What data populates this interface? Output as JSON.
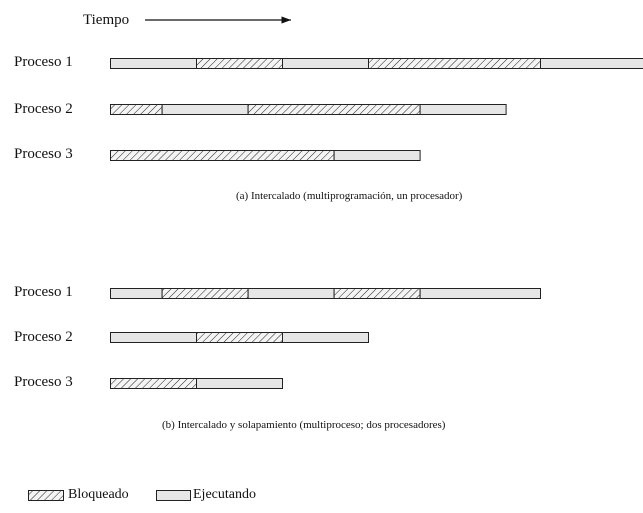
{
  "time_label": "Tiempo",
  "panels": [
    {
      "caption": "(a)  Intercalado (multiprogramación, un procesador)",
      "processes": [
        {
          "label": "Proceso 1",
          "segments": [
            {
              "state": "running",
              "start": 0,
              "end": 1
            },
            {
              "state": "blocked",
              "start": 1,
              "end": 2
            },
            {
              "state": "running",
              "start": 2,
              "end": 3
            },
            {
              "state": "blocked",
              "start": 3,
              "end": 5
            },
            {
              "state": "running",
              "start": 5,
              "end": 6.4
            }
          ]
        },
        {
          "label": "Proceso 2",
          "segments": [
            {
              "state": "blocked",
              "start": 0,
              "end": 0.6
            },
            {
              "state": "running",
              "start": 0.6,
              "end": 1.6
            },
            {
              "state": "blocked",
              "start": 1.6,
              "end": 3.6
            },
            {
              "state": "running",
              "start": 3.6,
              "end": 4.6
            }
          ]
        },
        {
          "label": "Proceso 3",
          "segments": [
            {
              "state": "blocked",
              "start": 0,
              "end": 2.6
            },
            {
              "state": "running",
              "start": 2.6,
              "end": 3.6
            }
          ]
        }
      ]
    },
    {
      "caption": "(b) Intercalado y solapamiento (multiproceso; dos procesadores)",
      "processes": [
        {
          "label": "Proceso 1",
          "segments": [
            {
              "state": "running",
              "start": 0,
              "end": 0.6
            },
            {
              "state": "blocked",
              "start": 0.6,
              "end": 1.6
            },
            {
              "state": "running",
              "start": 1.6,
              "end": 2.6
            },
            {
              "state": "blocked",
              "start": 2.6,
              "end": 3.6
            },
            {
              "state": "running",
              "start": 3.6,
              "end": 5
            }
          ]
        },
        {
          "label": "Proceso 2",
          "segments": [
            {
              "state": "running",
              "start": 0,
              "end": 1
            },
            {
              "state": "blocked",
              "start": 1,
              "end": 2
            },
            {
              "state": "running",
              "start": 2,
              "end": 3
            }
          ]
        },
        {
          "label": "Proceso 3",
          "segments": [
            {
              "state": "blocked",
              "start": 0,
              "end": 1
            },
            {
              "state": "running",
              "start": 1,
              "end": 2
            }
          ]
        }
      ]
    }
  ],
  "legend": {
    "blocked": "Bloqueado",
    "running": "Ejecutando"
  },
  "colors": {
    "running_fill": "#e6e6e6",
    "blocked_fill": "#f4f4f4",
    "stroke": "#222222"
  }
}
